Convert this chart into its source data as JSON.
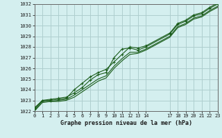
{
  "title": "Graphe pression niveau de la mer (hPa)",
  "background_color": "#d4efef",
  "grid_color": "#aecece",
  "line_color": "#1a5c1a",
  "marker_color": "#1a5c1a",
  "x_ticks": [
    0,
    1,
    2,
    3,
    4,
    5,
    6,
    7,
    8,
    9,
    10,
    11,
    12,
    13,
    14,
    17,
    18,
    19,
    20,
    21,
    22,
    23
  ],
  "ylim": [
    1022.0,
    1032.0
  ],
  "xlim": [
    0,
    23
  ],
  "yticks": [
    1022,
    1023,
    1024,
    1025,
    1026,
    1027,
    1028,
    1029,
    1030,
    1031,
    1032
  ],
  "line1_x": [
    0,
    1,
    2,
    3,
    4,
    5,
    6,
    7,
    8,
    9,
    10,
    11,
    12,
    13,
    14,
    17,
    18,
    19,
    20,
    21,
    22,
    23
  ],
  "line1_y": [
    1022.3,
    1023.0,
    1023.1,
    1023.2,
    1023.3,
    1023.7,
    1024.2,
    1024.9,
    1025.4,
    1025.6,
    1027.0,
    1027.8,
    1027.9,
    1027.7,
    1028.0,
    1029.2,
    1030.1,
    1030.4,
    1030.9,
    1031.1,
    1031.6,
    1032.0
  ],
  "line2_x": [
    0,
    1,
    2,
    3,
    4,
    5,
    6,
    7,
    8,
    9,
    10,
    11,
    12,
    13,
    14,
    17,
    18,
    19,
    20,
    21,
    22,
    23
  ],
  "line2_y": [
    1022.2,
    1023.0,
    1023.0,
    1023.1,
    1023.2,
    1024.0,
    1024.6,
    1025.2,
    1025.6,
    1025.9,
    1026.6,
    1027.3,
    1028.0,
    1027.9,
    1028.1,
    1029.3,
    1030.2,
    1030.5,
    1031.0,
    1031.2,
    1031.7,
    1032.1
  ],
  "line3_x": [
    0,
    1,
    2,
    3,
    4,
    5,
    6,
    7,
    8,
    9,
    10,
    11,
    12,
    13,
    14,
    17,
    18,
    19,
    20,
    21,
    22,
    23
  ],
  "line3_y": [
    1022.1,
    1022.9,
    1022.9,
    1023.0,
    1023.1,
    1023.5,
    1024.0,
    1024.5,
    1025.0,
    1025.3,
    1026.2,
    1026.9,
    1027.5,
    1027.5,
    1027.8,
    1029.0,
    1029.9,
    1030.2,
    1030.7,
    1030.9,
    1031.4,
    1031.8
  ],
  "line4_x": [
    0,
    1,
    2,
    3,
    4,
    5,
    6,
    7,
    8,
    9,
    10,
    11,
    12,
    13,
    14,
    17,
    18,
    19,
    20,
    21,
    22,
    23
  ],
  "line4_y": [
    1022.0,
    1022.8,
    1022.9,
    1022.9,
    1023.0,
    1023.3,
    1023.8,
    1024.3,
    1024.8,
    1025.1,
    1026.0,
    1026.7,
    1027.3,
    1027.4,
    1027.7,
    1028.9,
    1029.8,
    1030.1,
    1030.6,
    1030.8,
    1031.3,
    1031.7
  ],
  "tick_fontsize": 5.0,
  "xlabel_fontsize": 6.0
}
